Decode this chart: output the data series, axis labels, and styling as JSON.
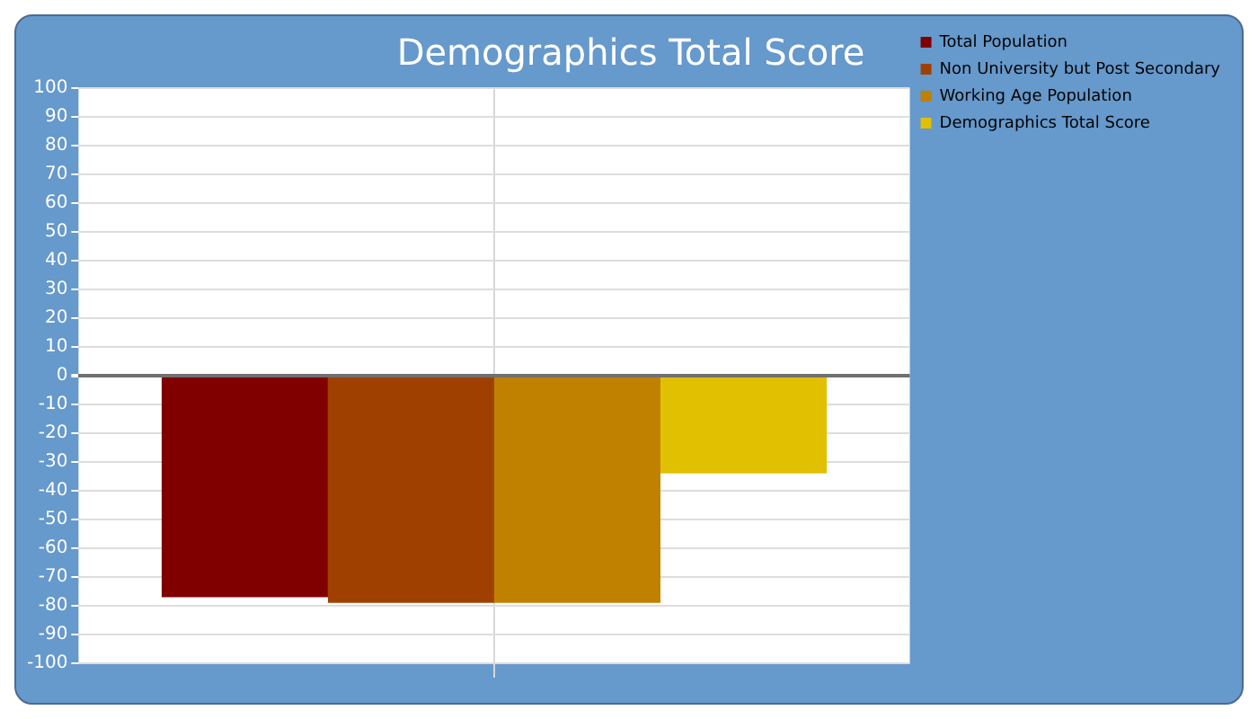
{
  "chart_data": {
    "type": "bar",
    "title": "Demographics Total Score",
    "categories": [
      null
    ],
    "series": [
      {
        "name": "Total Population",
        "color": "#800000",
        "values": [
          -77
        ]
      },
      {
        "name": "Non University but Post Secondary",
        "color": "#a04000",
        "values": [
          -79
        ]
      },
      {
        "name": "Working Age Population",
        "color": "#c08000",
        "values": [
          -79
        ]
      },
      {
        "name": "Demographics Total Score",
        "color": "#e0c000",
        "values": [
          -34
        ]
      }
    ],
    "ylim": [
      -100,
      100
    ],
    "yticks": [
      -100,
      -90,
      -80,
      -70,
      -60,
      -50,
      -40,
      -30,
      -20,
      -10,
      0,
      10,
      20,
      30,
      40,
      50,
      60,
      70,
      80,
      90,
      100
    ],
    "grid": true,
    "legend": "right"
  }
}
